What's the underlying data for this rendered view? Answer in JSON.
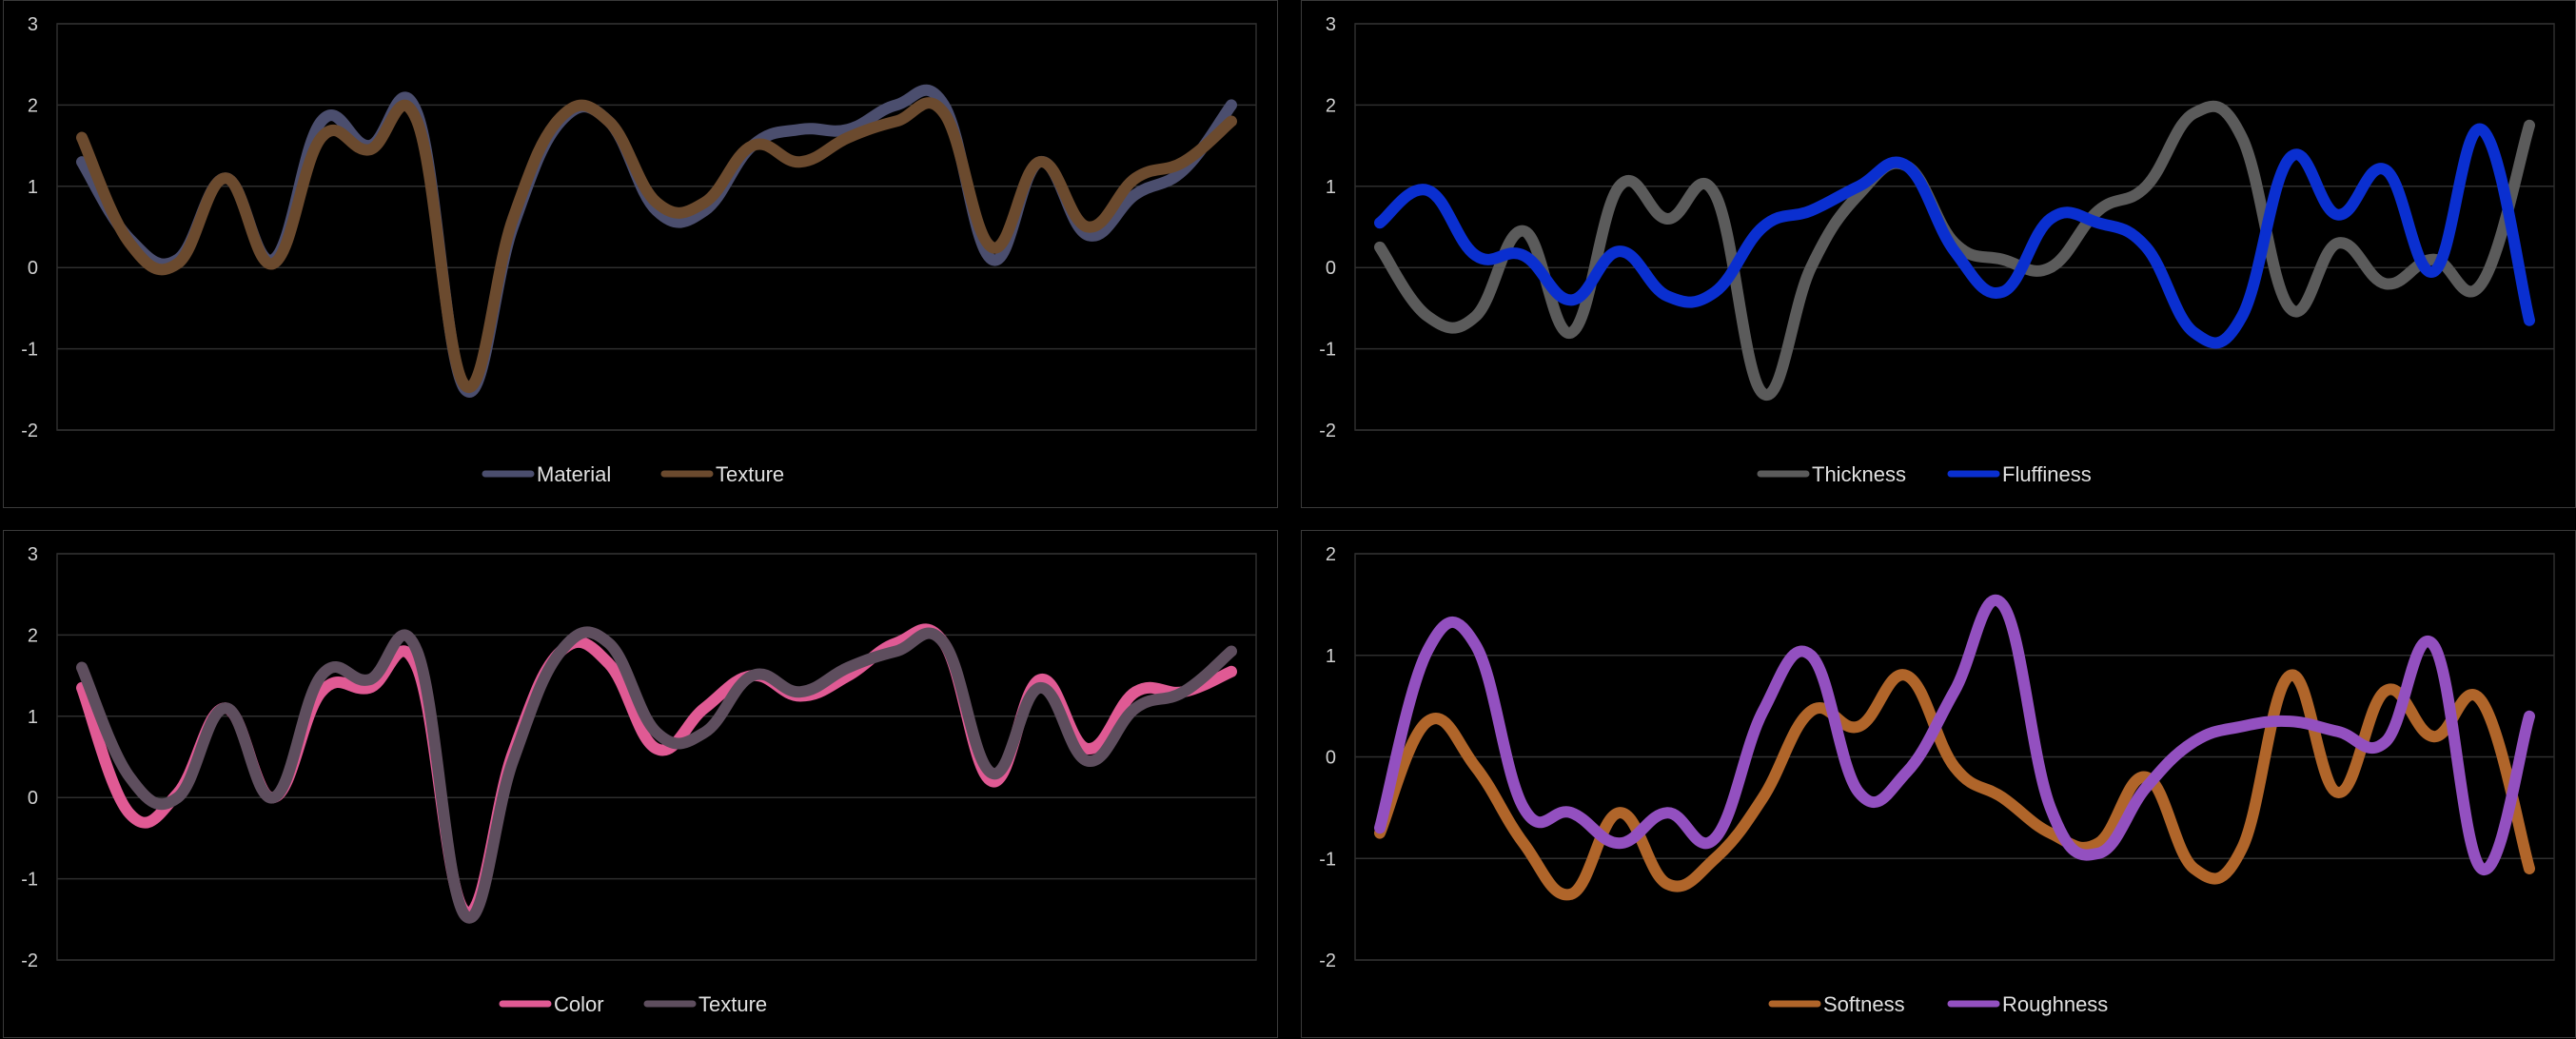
{
  "chart_data": [
    {
      "type": "line",
      "ylim": [
        -2,
        3
      ],
      "yticks": [
        3,
        2,
        1,
        0,
        -1,
        -2
      ],
      "grid": true,
      "legend_position": "bottom-center",
      "series": [
        {
          "name": "Material",
          "color": "#4b4e6e",
          "values": [
            1.3,
            0.35,
            0.1,
            1.1,
            0.1,
            1.8,
            1.5,
            1.9,
            -1.5,
            0.5,
            1.8,
            1.8,
            0.7,
            0.7,
            1.5,
            1.7,
            1.7,
            2.0,
            2.0,
            0.1,
            1.3,
            0.4,
            0.9,
            1.2,
            2.0
          ]
        },
        {
          "name": "Texture",
          "color": "#6b4a2e",
          "values": [
            1.6,
            0.3,
            0.05,
            1.1,
            0.05,
            1.6,
            1.45,
            1.8,
            -1.45,
            0.6,
            1.85,
            1.8,
            0.8,
            0.8,
            1.5,
            1.3,
            1.6,
            1.8,
            1.9,
            0.25,
            1.3,
            0.5,
            1.1,
            1.3,
            1.8
          ]
        }
      ]
    },
    {
      "type": "line",
      "ylim": [
        -2,
        3
      ],
      "yticks": [
        3,
        2,
        1,
        0,
        -1,
        -2
      ],
      "grid": true,
      "legend_position": "bottom-center",
      "series": [
        {
          "name": "Thickness",
          "color": "#5b5b5b",
          "values": [
            0.25,
            -0.6,
            -0.6,
            0.45,
            -0.8,
            1.0,
            0.6,
            0.9,
            -1.55,
            0.0,
            0.9,
            1.25,
            0.3,
            0.1,
            0.0,
            0.7,
            1.0,
            1.9,
            1.6,
            -0.5,
            0.3,
            -0.2,
            0.1,
            -0.2,
            1.75
          ]
        },
        {
          "name": "Fluffiness",
          "color": "#0a2fd0",
          "values": [
            0.55,
            0.95,
            0.15,
            0.15,
            -0.4,
            0.2,
            -0.35,
            -0.3,
            0.5,
            0.7,
            1.0,
            1.25,
            0.2,
            -0.3,
            0.6,
            0.55,
            0.25,
            -0.8,
            -0.6,
            1.35,
            0.65,
            1.2,
            -0.05,
            1.7,
            -0.65
          ]
        }
      ]
    },
    {
      "type": "line",
      "ylim": [
        -2,
        3
      ],
      "yticks": [
        3,
        2,
        1,
        0,
        -1,
        -2
      ],
      "grid": true,
      "legend_position": "bottom-center",
      "series": [
        {
          "name": "Color",
          "color": "#e05a94",
          "values": [
            1.35,
            -0.2,
            0.05,
            1.1,
            0.0,
            1.3,
            1.35,
            1.6,
            -1.4,
            0.55,
            1.8,
            1.65,
            0.6,
            1.1,
            1.5,
            1.25,
            1.5,
            1.9,
            1.9,
            0.2,
            1.45,
            0.6,
            1.3,
            1.3,
            1.55
          ]
        },
        {
          "name": "Texture",
          "color": "#5e4e5e",
          "values": [
            1.6,
            0.25,
            0.0,
            1.1,
            0.0,
            1.5,
            1.45,
            1.8,
            -1.45,
            0.45,
            1.8,
            1.9,
            0.8,
            0.8,
            1.5,
            1.3,
            1.6,
            1.8,
            1.9,
            0.3,
            1.35,
            0.45,
            1.1,
            1.3,
            1.8
          ]
        }
      ]
    },
    {
      "type": "line",
      "ylim": [
        -2,
        2
      ],
      "yticks": [
        2,
        1,
        0,
        -1,
        -2
      ],
      "grid": true,
      "legend_position": "bottom-center",
      "series": [
        {
          "name": "Softness",
          "color": "#b0652a",
          "values": [
            -0.75,
            0.35,
            -0.1,
            -0.85,
            -1.35,
            -0.55,
            -1.25,
            -1.0,
            -0.4,
            0.45,
            0.3,
            0.8,
            -0.1,
            -0.4,
            -0.75,
            -0.85,
            -0.2,
            -1.1,
            -0.9,
            0.8,
            -0.35,
            0.65,
            0.2,
            0.55,
            -1.1
          ]
        },
        {
          "name": "Roughness",
          "color": "#9350c0",
          "values": [
            -0.7,
            1.05,
            1.1,
            -0.5,
            -0.55,
            -0.85,
            -0.55,
            -0.8,
            0.45,
            1.0,
            -0.35,
            -0.15,
            0.65,
            1.5,
            -0.5,
            -0.95,
            -0.3,
            0.15,
            0.3,
            0.35,
            0.25,
            0.15,
            1.1,
            -1.1,
            0.4
          ]
        }
      ]
    }
  ]
}
